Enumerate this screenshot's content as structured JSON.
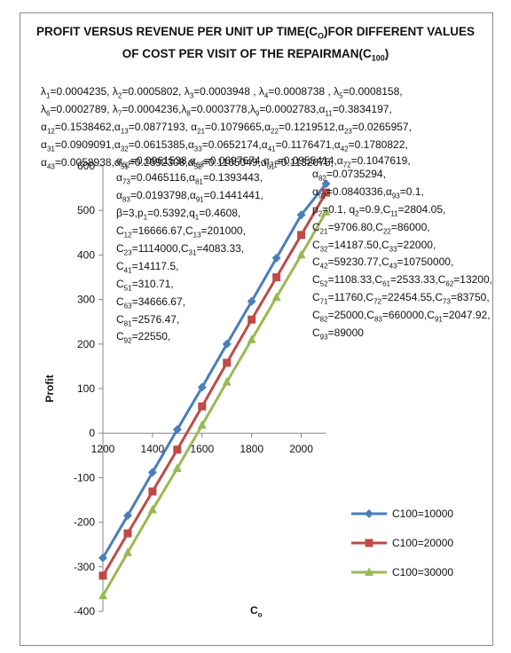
{
  "chart_data": {
    "type": "line",
    "title_html": "PROFIT VERSUS REVENUE PER UNIT UP TIME(C<sub>O</sub>)FOR DIFFERENT VALUES OF COST PER VISIT OF THE REPAIRMAN(C<sub>100</sub>)",
    "xlabel_html": "C<sub>o</sub>",
    "ylabel": "Profit",
    "x": [
      1200,
      1300,
      1400,
      1500,
      1600,
      1700,
      1800,
      1900,
      2000,
      2100
    ],
    "xlim": [
      1200,
      2100
    ],
    "ylim": [
      -400,
      600
    ],
    "x_ticks": [
      "1200",
      "1400",
      "1600",
      "1800",
      "2000"
    ],
    "y_ticks": [
      "600",
      "500",
      "400",
      "300",
      "200",
      "100",
      "0",
      "-100",
      "-200",
      "-300",
      "-400"
    ],
    "grid": false,
    "legend_position": "right",
    "series": [
      {
        "name": "C100=10000",
        "color": "#4a7ebb",
        "marker": "diamond",
        "values": [
          -280,
          -185,
          -88,
          8,
          103,
          200,
          296,
          393,
          490,
          560
        ]
      },
      {
        "name": "C100=20000",
        "color": "#be4b48",
        "marker": "square",
        "values": [
          -320,
          -225,
          -131,
          -37,
          60,
          158,
          255,
          350,
          445,
          540
        ]
      },
      {
        "name": "C100=30000",
        "color": "#98b954",
        "marker": "triangle",
        "values": [
          -365,
          -268,
          -172,
          -79,
          18,
          115,
          210,
          305,
          400,
          497
        ]
      }
    ]
  },
  "parameters": {
    "lines_full": [
      "λ<sub>1</sub>=0.0004235, λ<sub>2</sub>=0.0005802, λ<sub>3</sub>=0.0003948 , λ<sub>4</sub>=0.0008738 , λ<sub>5</sub>=0.0008158,",
      "λ<sub>6</sub>=0.0002789, λ<sub>7</sub>=0.0004236,λ<sub>8</sub>=0.0003778,λ<sub>9</sub>=0.0002783,α<sub>11</sub>=0.3834197,",
      "α<sub>12</sub>=0.1538462,α<sub>13</sub>=0.0877193, α<sub>21</sub>=0.1079665,α<sub>22</sub>=0.1219512,α<sub>23</sub>=0.0265957,",
      "α<sub>31</sub>=0.0909091,α<sub>32</sub>=0.0615385,α<sub>33</sub>=0.0652174,α<sub>41</sub>=0.1176471,α<sub>42</sub>=0.1780822,",
      "α<sub>43</sub>=0.0058938,α<sub>51</sub>=0.2692308,α<sub>52</sub>=0.1165049,α<sub>61</sub>=0.1132075,"
    ],
    "lines_left": [
      "α<sub>62</sub>=0.0961538,α<sub>63</sub>=0.0697674,α<sub>71</sub>=0.0955414,α<sub>72</sub>=0.1047619,",
      "α<sub>73</sub>=0.0465116,α<sub>81</sub>=0.1393443,",
      "α<sub>83</sub>=0.0193798,α<sub>91</sub>=0.1441441,",
      "β=3,p<sub>1</sub>=0.5392,q<sub>1</sub>=0.4608,",
      "C<sub>12</sub>=16666.67,C<sub>13</sub>=201000,",
      "C<sub>23</sub>=1114000,C<sub>31</sub>=4083.33,",
      "C<sub>41</sub>=14117.5,",
      "C<sub>51</sub>=310.71,",
      "C<sub>63</sub>=34666.67,",
      "C<sub>81</sub>=2576.47,",
      "C<sub>92</sub>=22550,"
    ],
    "lines_right": [
      "",
      "α<sub>82</sub>=0.0735294,",
      "α<sub>92</sub>=0.0840336,α<sub>93</sub>=0.1,",
      "p<sub>2</sub>=0.1, q<sub>2</sub>=0.9,C<sub>11</sub>=2804.05,",
      "C<sub>21</sub>=9706.80,C<sub>22</sub>=86000,",
      "C<sub>32</sub>=14187.50,C<sub>33</sub>=22000,",
      "C<sub>42</sub>=59230.77,C<sub>43</sub>=10750000,",
      "C<sub>52</sub>=1108.33,C<sub>61</sub>=2533.33,C<sub>62</sub>=13200,",
      "C<sub>71</sub>=11760,C<sub>72</sub>=22454.55,C<sub>73</sub>=83750,",
      "C<sub>82</sub>=25000,C<sub>83</sub>=660000,C<sub>91</sub>=2047.92,",
      "C<sub>93</sub>=89000"
    ]
  }
}
